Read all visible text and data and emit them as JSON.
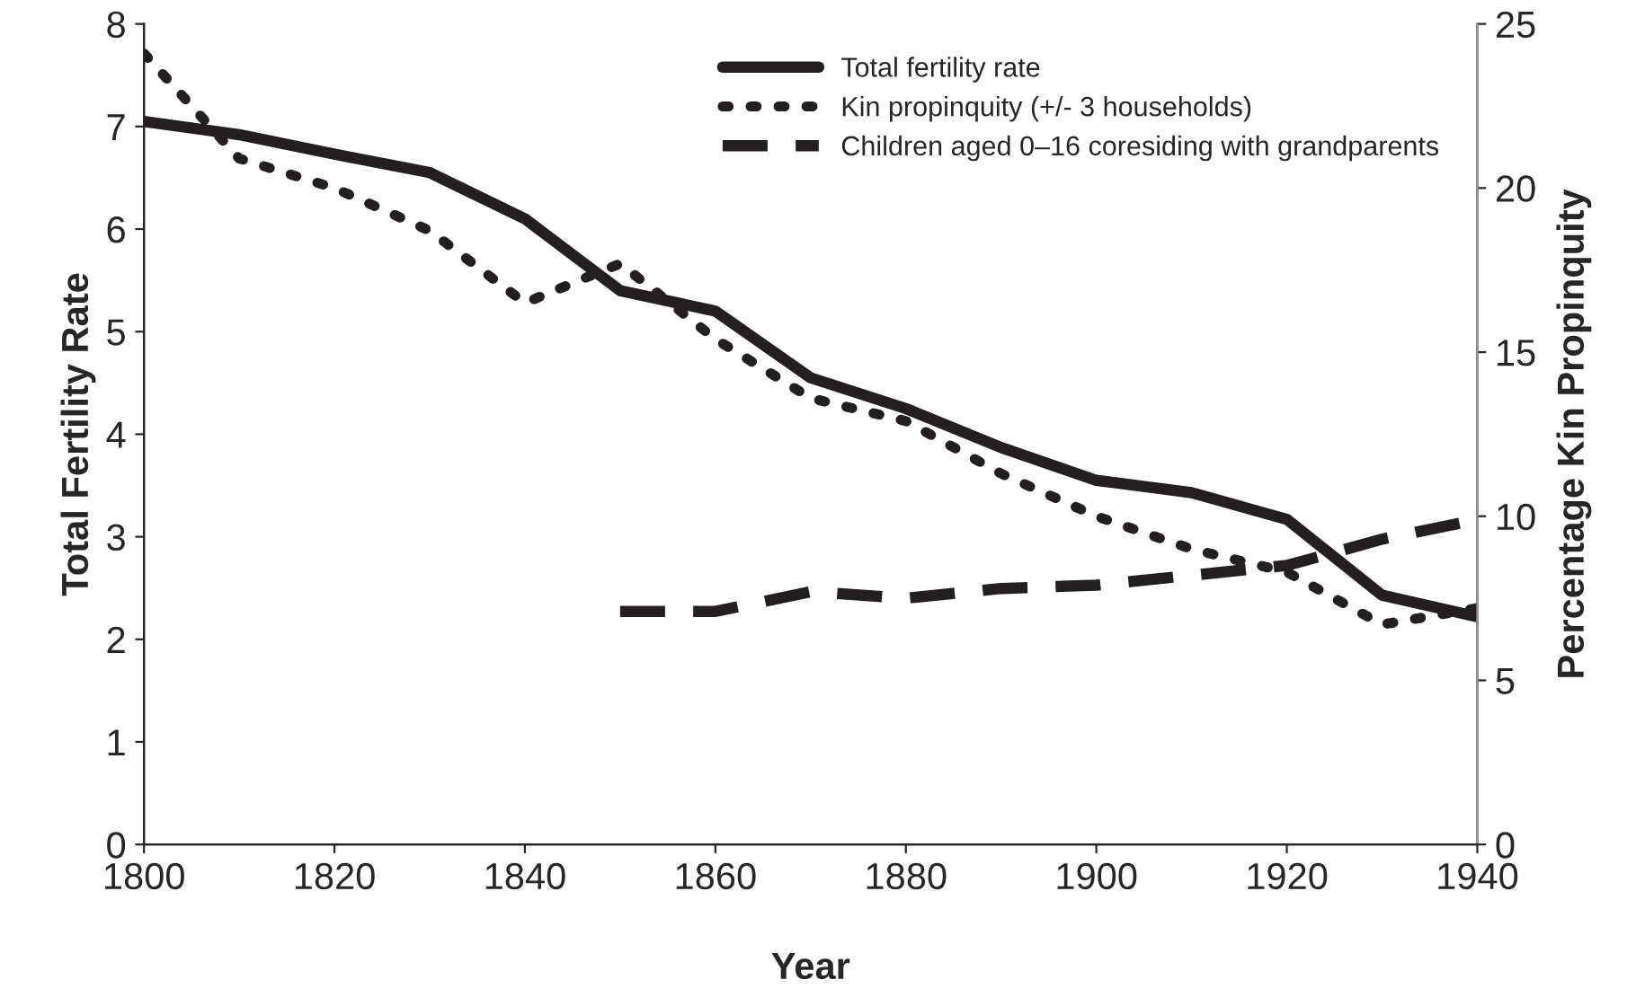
{
  "chart_data": {
    "type": "line",
    "xlabel": "Year",
    "ylabel": "Total Fertility Rate",
    "y2label": "Percentage Kin Propinquity",
    "x": [
      1800,
      1810,
      1820,
      1830,
      1840,
      1850,
      1860,
      1870,
      1880,
      1890,
      1900,
      1910,
      1920,
      1930,
      1940
    ],
    "series": [
      {
        "name": "Total fertility rate",
        "color": "#231f20",
        "line_style": "solid",
        "values": [
          7.05,
          6.92,
          6.73,
          6.55,
          6.1,
          5.4,
          5.2,
          4.55,
          4.25,
          3.87,
          3.55,
          3.43,
          3.17,
          2.43,
          2.22
        ]
      },
      {
        "name": "Kin propinquity (+/- 3 households)",
        "color": "#231f20",
        "line_style": "dotted",
        "axis": "y2",
        "values": [
          24.1,
          20.9,
          20.0,
          18.7,
          16.5,
          17.7,
          15.4,
          13.6,
          12.9,
          11.3,
          10.0,
          9.0,
          8.3,
          6.7,
          7.2
        ]
      },
      {
        "name": "Children aged 0–16 coresiding with grandparents",
        "color": "#231f20",
        "line_style": "dashed",
        "axis": "y2",
        "values": [
          null,
          null,
          null,
          null,
          null,
          7.1,
          7.1,
          7.7,
          7.5,
          7.8,
          7.9,
          8.2,
          8.5,
          9.3,
          9.9
        ]
      }
    ],
    "xlim": [
      1800,
      1940
    ],
    "xticks": [
      1800,
      1820,
      1840,
      1860,
      1880,
      1900,
      1920,
      1940
    ],
    "ylim": [
      0,
      8
    ],
    "yticks": [
      0,
      1,
      2,
      3,
      4,
      5,
      6,
      7,
      8
    ],
    "y2lim": [
      0,
      25
    ],
    "y2ticks": [
      0,
      5,
      10,
      15,
      20,
      25
    ],
    "legend": "top right",
    "grid": false
  }
}
